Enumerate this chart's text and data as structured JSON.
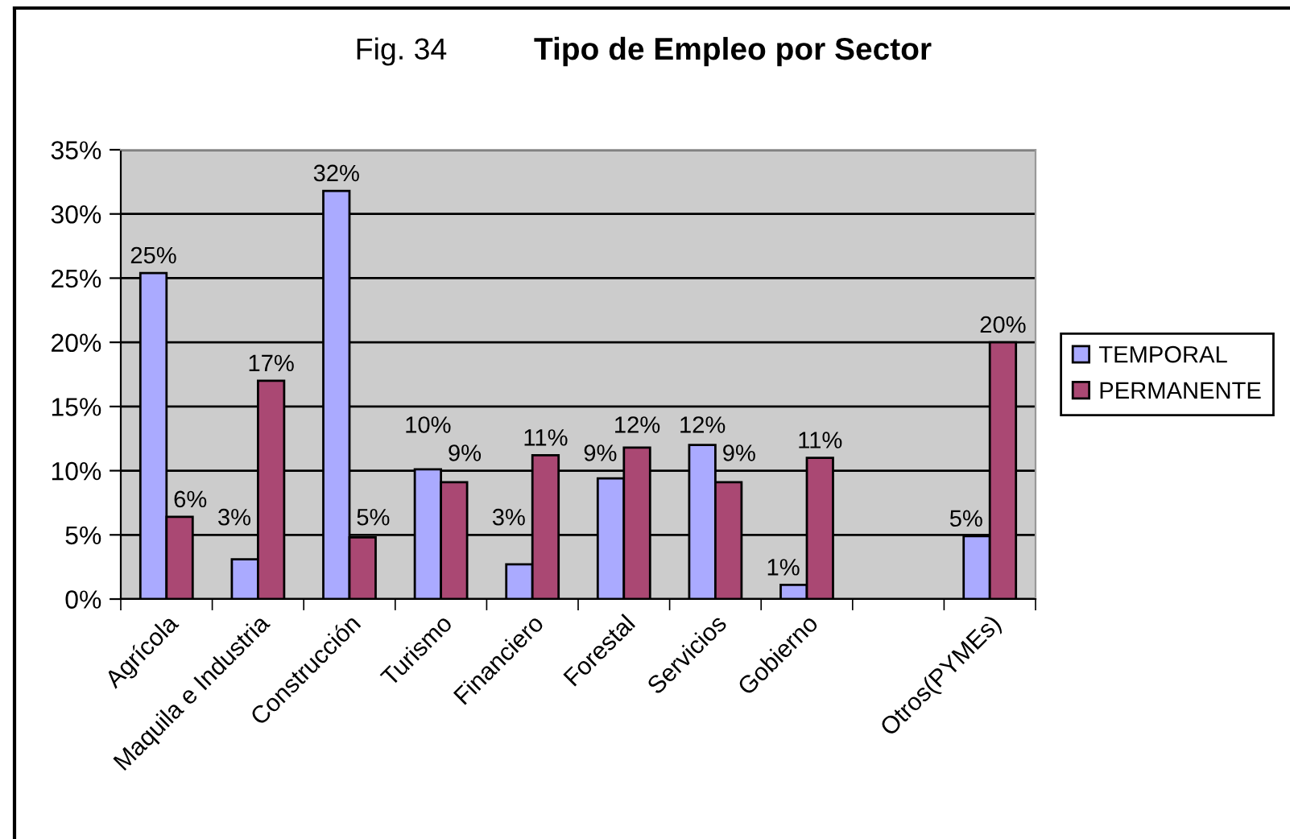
{
  "chart_data": {
    "type": "bar",
    "title": "Tipo de Empleo por Sector",
    "annotations": [
      "Fig. 34"
    ],
    "categories": [
      "Agrícola",
      "Maquila e Industria",
      "Construcción",
      "Turismo",
      "Financiero",
      "Forestal",
      "Servicios",
      "Gobierno",
      null,
      "Otros(PYMEs)"
    ],
    "series": [
      {
        "name": "TEMPORAL",
        "color": "#aaaaff",
        "values": [
          25.4,
          3.1,
          31.8,
          10.1,
          2.7,
          9.4,
          12.0,
          1.1,
          null,
          4.9
        ],
        "value_labels": [
          "25%",
          "3%",
          "32%",
          "10%",
          "3%",
          "9%",
          "12%",
          "1%",
          null,
          "5%"
        ]
      },
      {
        "name": "PERMANENTE",
        "color": "#aa4873",
        "values": [
          6.4,
          17.0,
          4.8,
          9.1,
          11.2,
          11.8,
          9.1,
          11.0,
          null,
          20.0
        ],
        "value_labels": [
          "6%",
          "17%",
          "5%",
          "9%",
          "11%",
          "12%",
          "9%",
          "11%",
          null,
          "20%"
        ]
      }
    ],
    "ylim": [
      0,
      35
    ],
    "yticks": [
      {
        "value": 0,
        "label": "0%"
      },
      {
        "value": 5,
        "label": "5%"
      },
      {
        "value": 10,
        "label": "10%"
      },
      {
        "value": 15,
        "label": "15%"
      },
      {
        "value": 20,
        "label": "20%"
      },
      {
        "value": 25,
        "label": "25%"
      },
      {
        "value": 30,
        "label": "30%"
      },
      {
        "value": 35,
        "label": "35%"
      }
    ],
    "grid": "y",
    "legend": "right"
  }
}
